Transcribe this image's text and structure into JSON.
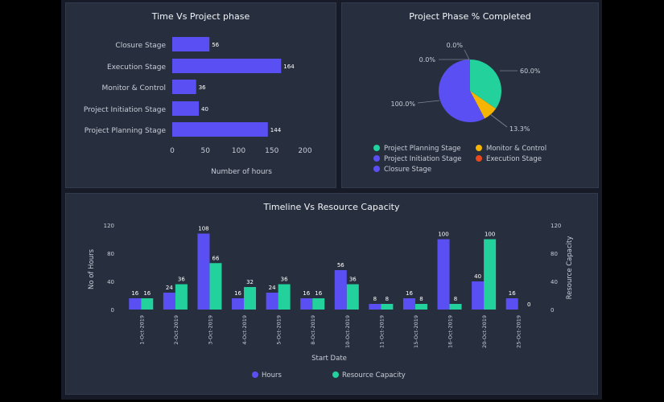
{
  "colors": {
    "hours": "#5a4ff2",
    "resource": "#22d19b",
    "monitor": "#f5b400",
    "execution": "#e8491d",
    "text": "#c8ccd6",
    "axis": "#9aa0ad"
  },
  "chart_data": [
    {
      "type": "bar",
      "orientation": "horizontal",
      "title": "Time Vs Project phase",
      "categories": [
        "Closure Stage",
        "Execution Stage",
        "Monitor & Control",
        "Project Initiation Stage",
        "Project Planning Stage"
      ],
      "values": [
        56,
        164,
        36,
        40,
        144
      ],
      "xlabel": "Number of hours",
      "xlim": [
        0,
        200
      ],
      "xticks": [
        "0",
        "50",
        "100",
        "150",
        "200"
      ]
    },
    {
      "type": "pie",
      "title": "Project Phase % Completed",
      "slices": [
        {
          "name": "Project Planning Stage",
          "value": 60.0,
          "label": "60.0%"
        },
        {
          "name": "Monitor & Control",
          "value": 13.3,
          "label": "13.3%"
        },
        {
          "name": "Project Initiation Stage",
          "value": 100.0,
          "label": "100.0%"
        },
        {
          "name": "Execution Stage",
          "value": 0.0,
          "label": "0.0%"
        },
        {
          "name": "Closure Stage",
          "value": 0.0,
          "label": "0.0%"
        }
      ],
      "legend": [
        "Project Planning Stage",
        "Monitor & Control",
        "Project Initiation Stage",
        "Execution Stage",
        "Closure Stage"
      ]
    },
    {
      "type": "bar",
      "title": "Timeline Vs Resource Capacity",
      "categories": [
        "1-Oct-2019",
        "2-Oct-2019",
        "3-Oct-2019",
        "4-Oct-2019",
        "5-Oct-2019",
        "8-Oct-2019",
        "10-Oct-2019",
        "11-Oct-2019",
        "15-Oct-2019",
        "16-Oct-2019",
        "20-Oct-2019",
        "25-Oct-2019"
      ],
      "series": [
        {
          "name": "Hours",
          "values": [
            16,
            24,
            108,
            16,
            24,
            16,
            56,
            8,
            16,
            100,
            40,
            16
          ]
        },
        {
          "name": "Resource Capacity",
          "values": [
            16,
            36,
            66,
            32,
            36,
            16,
            36,
            8,
            8,
            8,
            100,
            0
          ]
        }
      ],
      "xlabel": "Start Date",
      "ylabel": "No of Hours",
      "y2label": "Resource Capacity",
      "ylim": [
        0,
        120
      ],
      "yticks": [
        "0",
        "40",
        "80",
        "120"
      ]
    }
  ]
}
